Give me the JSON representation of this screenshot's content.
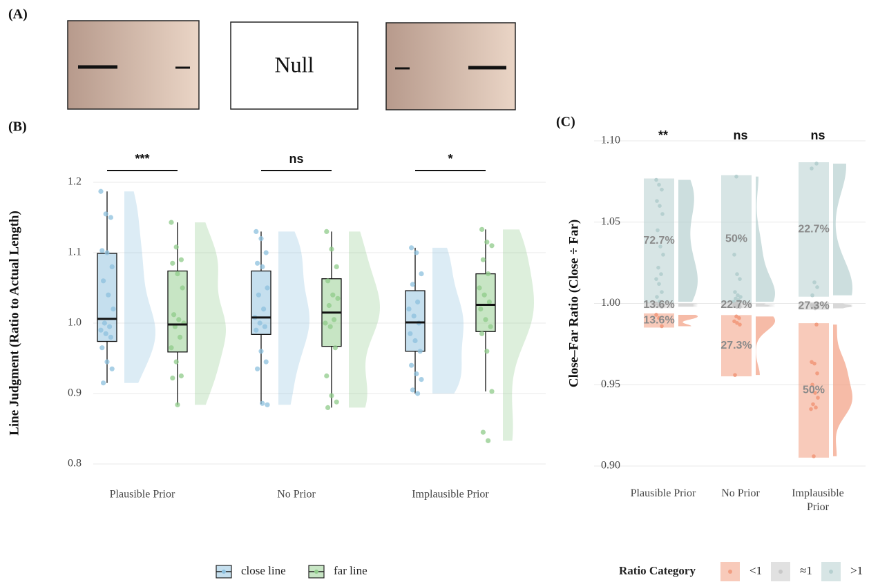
{
  "figure": {
    "panel_labels": [
      "(A)",
      "(B)",
      "(C)"
    ],
    "null_label": "Null"
  },
  "chart_data": [
    {
      "type": "box",
      "y_label": "Line Judgment (Ratio to Actual Length)",
      "categories": [
        "Plausible Prior",
        "No Prior",
        "Implausible Prior"
      ],
      "ylim": [
        0.8,
        1.2
      ],
      "yticks": [
        0.8,
        0.9,
        {
          "value": 1,
          "label": "1.0"
        },
        1.1,
        1.2
      ],
      "grid": true,
      "legend": "bottom",
      "annotations": [
        "***",
        "ns",
        "*"
      ],
      "series": [
        {
          "name": "close line",
          "color": "#8cc0de",
          "boxes": [
            {
              "min": 0.915,
              "q1": 0.974,
              "median": 1.006,
              "q3": 1.099,
              "max": 1.187
            },
            {
              "min": 0.885,
              "q1": 0.984,
              "median": 1.008,
              "q3": 1.074,
              "max": 1.13
            },
            {
              "min": 0.9,
              "q1": 0.96,
              "median": 1.001,
              "q3": 1.046,
              "max": 1.107
            }
          ],
          "points": [
            [
              1.187,
              1.155,
              1.15,
              1.103,
              1.1,
              1.08,
              1.06,
              1.04,
              1.02,
              1.0,
              0.995,
              0.99,
              0.985,
              0.98,
              0.965,
              0.945,
              0.935,
              0.915
            ],
            [
              1.13,
              1.12,
              1.1,
              1.085,
              1.08,
              1.05,
              1.04,
              1.02,
              1.008,
              1.0,
              0.995,
              0.99,
              0.96,
              0.945,
              0.935,
              0.886,
              0.884
            ],
            [
              1.107,
              1.1,
              1.07,
              1.055,
              1.03,
              1.02,
              1.01,
              1.0,
              0.985,
              0.975,
              0.96,
              0.94,
              0.928,
              0.92,
              0.905,
              0.9
            ]
          ]
        },
        {
          "name": "far line",
          "color": "#8fcb8a",
          "boxes": [
            {
              "min": 0.884,
              "q1": 0.959,
              "median": 0.998,
              "q3": 1.074,
              "max": 1.143
            },
            {
              "min": 0.88,
              "q1": 0.967,
              "median": 1.015,
              "q3": 1.063,
              "max": 1.13
            },
            {
              "min": 0.903,
              "q1": 0.988,
              "median": 1.026,
              "q3": 1.07,
              "max": 1.133
            }
          ],
          "points": [
            [
              1.143,
              1.108,
              1.09,
              1.085,
              1.07,
              1.05,
              1.012,
              1.005,
              1.0,
              0.995,
              0.98,
              0.965,
              0.945,
              0.925,
              0.922,
              0.884
            ],
            [
              1.13,
              1.105,
              1.08,
              1.06,
              1.04,
              1.035,
              1.025,
              1.005,
              1.0,
              0.995,
              0.965,
              0.925,
              0.897,
              0.888,
              0.88
            ],
            [
              1.133,
              1.115,
              1.11,
              1.09,
              1.07,
              1.05,
              1.04,
              1.03,
              1.02,
              1.005,
              0.995,
              0.985,
              0.96,
              0.903,
              0.845,
              0.833
            ]
          ]
        }
      ]
    },
    {
      "type": "raincloud",
      "y_label": "Close–Far Ratio (Close ÷ Far)",
      "categories": [
        "Plausible Prior",
        "No Prior",
        "Implausible Prior"
      ],
      "ylim": [
        0.9,
        1.1
      ],
      "yticks": [
        {
          "value": 0.9,
          "label": "0.90"
        },
        {
          "value": 0.95,
          "label": "0.95"
        },
        {
          "value": 1,
          "label": "1.00"
        },
        {
          "value": 1.05,
          "label": "1.05"
        },
        {
          "value": 1.1,
          "label": "1.10"
        }
      ],
      "grid": true,
      "legend": "bottom",
      "legend_title": "Ratio Category",
      "annotations": [
        "**",
        "ns",
        "ns"
      ],
      "series": [
        {
          "name": ">1",
          "color": "#b6d0d0",
          "values": [
            72.7,
            50,
            22.7
          ],
          "value_labels": [
            "72.7%",
            "50%",
            "22.7%"
          ],
          "points": [
            [
              1.076,
              1.073,
              1.07,
              1.063,
              1.06,
              1.055,
              1.045,
              1.035,
              1.03,
              1.022,
              1.018,
              1.015,
              1.012,
              1.007,
              1.004,
              1.001
            ],
            [
              1.078,
              1.04,
              1.03,
              1.018,
              1.015,
              1.007,
              1.005,
              1.004,
              1.003,
              1.002,
              1.001
            ],
            [
              1.086,
              1.083,
              1.013,
              1.01,
              1.005
            ]
          ]
        },
        {
          "name": "≈1",
          "color": "#c8c8c8",
          "values": [
            13.6,
            22.7,
            27.3
          ],
          "value_labels": [
            "13.6%",
            "22.7%",
            "27.3%"
          ],
          "points": [
            [
              1.0,
              0.999,
              0.998
            ],
            [
              1.0,
              0.999,
              0.999,
              0.998,
              0.998
            ],
            [
              1.0,
              0.999,
              0.999,
              0.998,
              0.998,
              0.997
            ]
          ]
        },
        {
          "name": "<1",
          "color": "#f29e82",
          "values": [
            13.6,
            27.3,
            50
          ],
          "value_labels": [
            "13.6%",
            "27.3%",
            "50%"
          ],
          "points": [
            [
              0.993,
              0.991,
              0.986
            ],
            [
              0.992,
              0.991,
              0.989,
              0.988,
              0.987,
              0.956
            ],
            [
              0.987,
              0.964,
              0.963,
              0.957,
              0.95,
              0.945,
              0.942,
              0.938,
              0.936,
              0.935,
              0.906
            ]
          ]
        }
      ]
    }
  ]
}
